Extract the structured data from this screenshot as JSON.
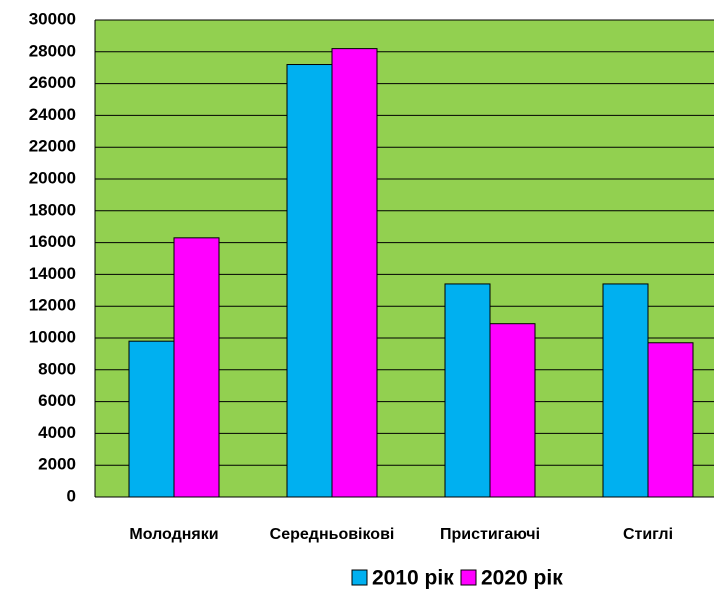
{
  "chart_data": {
    "type": "bar",
    "categories": [
      "Молодняки",
      "Середньовікові",
      "Пристигаючі",
      "Стиглі"
    ],
    "series": [
      {
        "name": "2010 рік",
        "color": "#00b0f0",
        "values": [
          9800,
          27200,
          13400,
          13400
        ]
      },
      {
        "name": "2020 рік",
        "color": "#ff00ff",
        "values": [
          16300,
          28200,
          10900,
          9700
        ]
      }
    ],
    "ylim": [
      0,
      30000
    ],
    "yticks": [
      0,
      2000,
      4000,
      6000,
      8000,
      10000,
      12000,
      14000,
      16000,
      18000,
      20000,
      22000,
      24000,
      26000,
      28000,
      30000
    ],
    "grid": true,
    "legend": "bottom",
    "plot_background": "#92d050"
  }
}
